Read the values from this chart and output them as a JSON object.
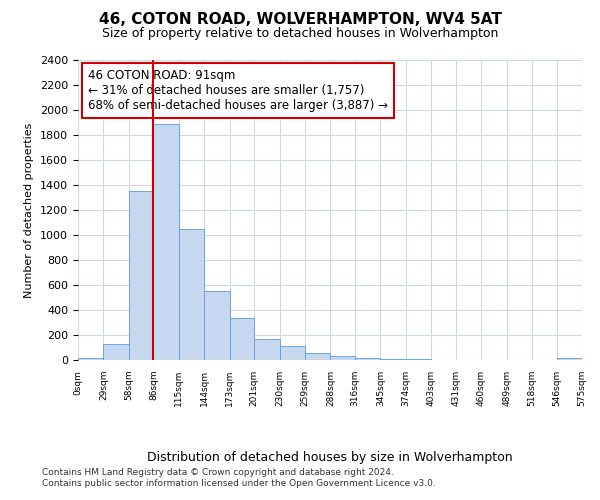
{
  "title": "46, COTON ROAD, WOLVERHAMPTON, WV4 5AT",
  "subtitle": "Size of property relative to detached houses in Wolverhampton",
  "xlabel": "Distribution of detached houses by size in Wolverhampton",
  "ylabel": "Number of detached properties",
  "footer_line1": "Contains HM Land Registry data © Crown copyright and database right 2024.",
  "footer_line2": "Contains public sector information licensed under the Open Government Licence v3.0.",
  "annotation_title": "46 COTON ROAD: 91sqm",
  "annotation_line2": "← 31% of detached houses are smaller (1,757)",
  "annotation_line3": "68% of semi-detached houses are larger (3,887) →",
  "bar_color": "#c5d8f0",
  "bar_edge_color": "#5b9bd5",
  "vline_color": "#cc0000",
  "vline_x": 86,
  "annotation_box_color": "#ffffff",
  "annotation_box_edge": "#cc0000",
  "bin_edges": [
    0,
    29,
    58,
    86,
    115,
    144,
    173,
    201,
    230,
    259,
    288,
    316,
    345,
    374,
    403,
    431,
    460,
    489,
    518,
    546,
    575
  ],
  "bin_labels": [
    "0sqm",
    "29sqm",
    "58sqm",
    "86sqm",
    "115sqm",
    "144sqm",
    "173sqm",
    "201sqm",
    "230sqm",
    "259sqm",
    "288sqm",
    "316sqm",
    "345sqm",
    "374sqm",
    "403sqm",
    "431sqm",
    "460sqm",
    "489sqm",
    "518sqm",
    "546sqm",
    "575sqm"
  ],
  "bar_heights": [
    15,
    130,
    1350,
    1890,
    1050,
    550,
    335,
    170,
    110,
    60,
    30,
    20,
    12,
    5,
    3,
    0,
    3,
    0,
    3,
    20
  ],
  "ylim": [
    0,
    2400
  ],
  "yticks": [
    0,
    200,
    400,
    600,
    800,
    1000,
    1200,
    1400,
    1600,
    1800,
    2000,
    2200,
    2400
  ],
  "background_color": "#ffffff",
  "plot_bg_color": "#ffffff",
  "grid_color": "#d0d8e8"
}
